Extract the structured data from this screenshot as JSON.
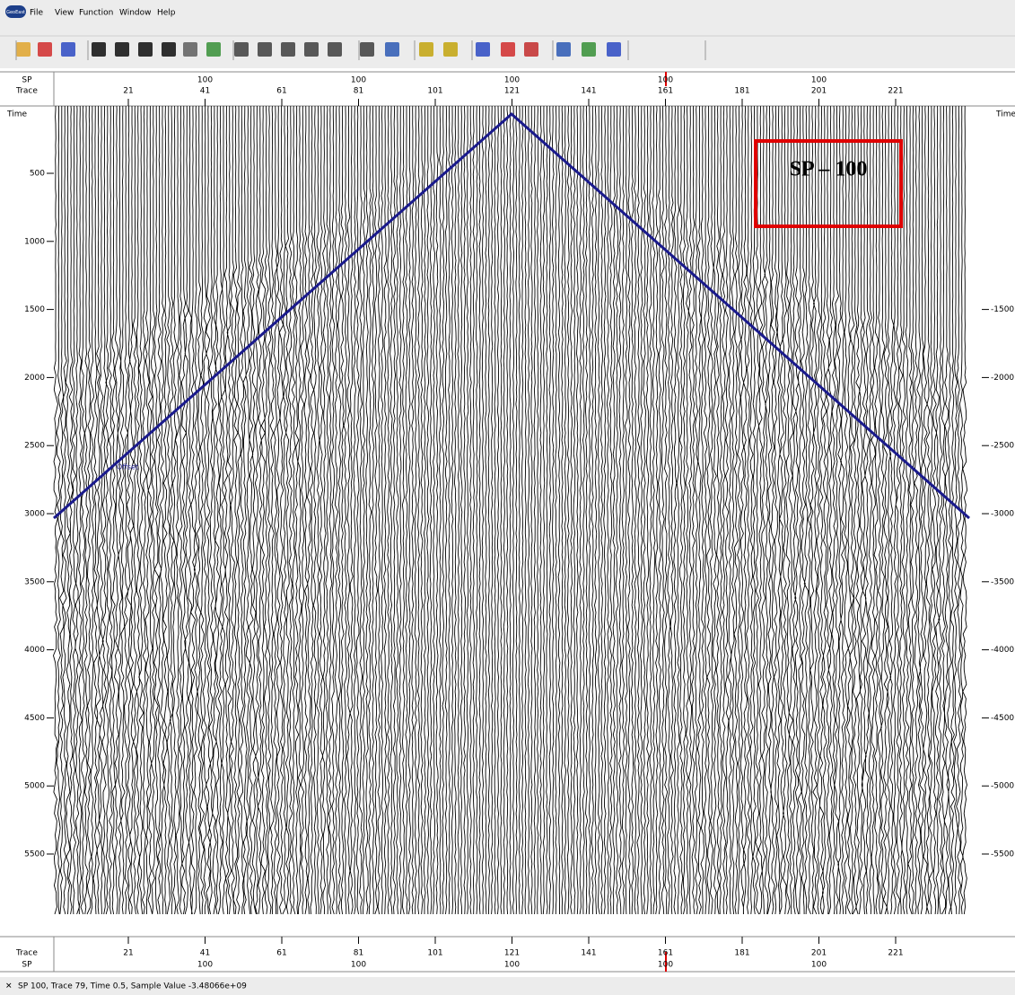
{
  "logo": "GeoEast",
  "menu": [
    "File",
    "View",
    "Function",
    "Window",
    "Help"
  ],
  "top_axis": {
    "row_labels": [
      "SP",
      "Trace"
    ],
    "sp": [
      "100",
      "100",
      "100",
      "100",
      "100"
    ],
    "trace": [
      "21",
      "41",
      "61",
      "81",
      "101",
      "121",
      "141",
      "161",
      "181",
      "201",
      "221"
    ]
  },
  "bottom_axis": {
    "row_labels": [
      "Trace",
      "SP"
    ],
    "sp": [
      "100",
      "100",
      "100",
      "100",
      "100"
    ],
    "trace": [
      "21",
      "41",
      "61",
      "81",
      "101",
      "121",
      "141",
      "161",
      "181",
      "201",
      "221"
    ]
  },
  "left_axis": {
    "title": "Time",
    "labels": [
      "500",
      "1000",
      "1500",
      "2000",
      "2500",
      "3000",
      "3500",
      "4000",
      "4500",
      "5000",
      "5500"
    ]
  },
  "right_axis": {
    "title": "Time",
    "labels": [
      "-1500",
      "-2000",
      "-2500",
      "-3000",
      "-3500",
      "-4000",
      "-4500",
      "-5000",
      "-5500"
    ]
  },
  "annotation": "SP – 100",
  "line_label": "Offset",
  "status": "SP 100, Trace 79, Time 0.5, Sample Value -3.48066e+09"
}
